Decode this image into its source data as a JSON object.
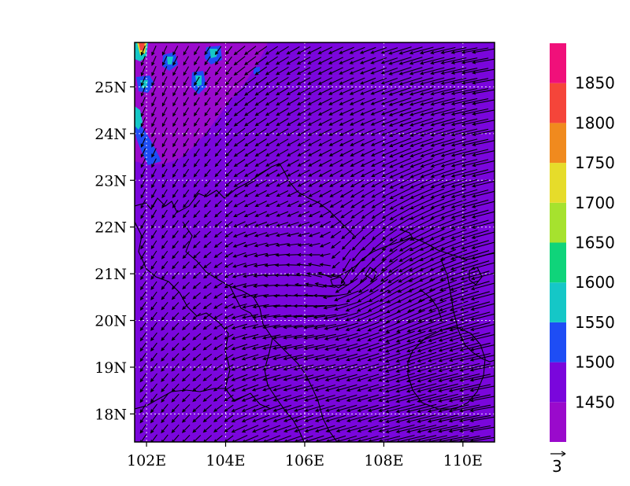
{
  "map": {
    "field_colors": {
      "base": "#7a06dc",
      "elevated": "#9a0acc",
      "high1500": "#1e4df5",
      "high1550": "#15c7c7",
      "high1600": "#0fd47a",
      "high1650": "#a6e22e",
      "high1700": "#e6dc2a",
      "high1750": "#f08a1e",
      "high1800": "#f5453a",
      "high1850": "#f0107a"
    },
    "longitude_ticks": [
      {
        "value": 102,
        "label": "102E"
      },
      {
        "value": 104,
        "label": "104E"
      },
      {
        "value": 106,
        "label": "106E"
      },
      {
        "value": 108,
        "label": "108E"
      },
      {
        "value": 110,
        "label": "110E"
      }
    ],
    "latitude_ticks": [
      {
        "value": 18,
        "label": "18N"
      },
      {
        "value": 19,
        "label": "19N"
      },
      {
        "value": 20,
        "label": "20N"
      },
      {
        "value": 21,
        "label": "21N"
      },
      {
        "value": 22,
        "label": "22N"
      },
      {
        "value": 23,
        "label": "23N"
      },
      {
        "value": 24,
        "label": "24N"
      },
      {
        "value": 25,
        "label": "25N"
      }
    ],
    "extent": {
      "lon_min": 101.7,
      "lon_max": 110.8,
      "lat_min": 17.4,
      "lat_max": 25.95
    },
    "gridlines": "dotted",
    "vector_reference": {
      "label": "3"
    }
  },
  "colorbar": {
    "levels": [
      {
        "label": "",
        "color": "#9a0acc"
      },
      {
        "label": "1450",
        "color": "#7a06dc"
      },
      {
        "label": "1500",
        "color": "#1e4df5"
      },
      {
        "label": "1550",
        "color": "#15c7c7"
      },
      {
        "label": "1600",
        "color": "#0fd47a"
      },
      {
        "label": "1650",
        "color": "#a6e22e"
      },
      {
        "label": "1700",
        "color": "#e6dc2a"
      },
      {
        "label": "1750",
        "color": "#f08a1e"
      },
      {
        "label": "1800",
        "color": "#f5453a"
      },
      {
        "label": "1850",
        "color": "#f0107a"
      }
    ]
  }
}
